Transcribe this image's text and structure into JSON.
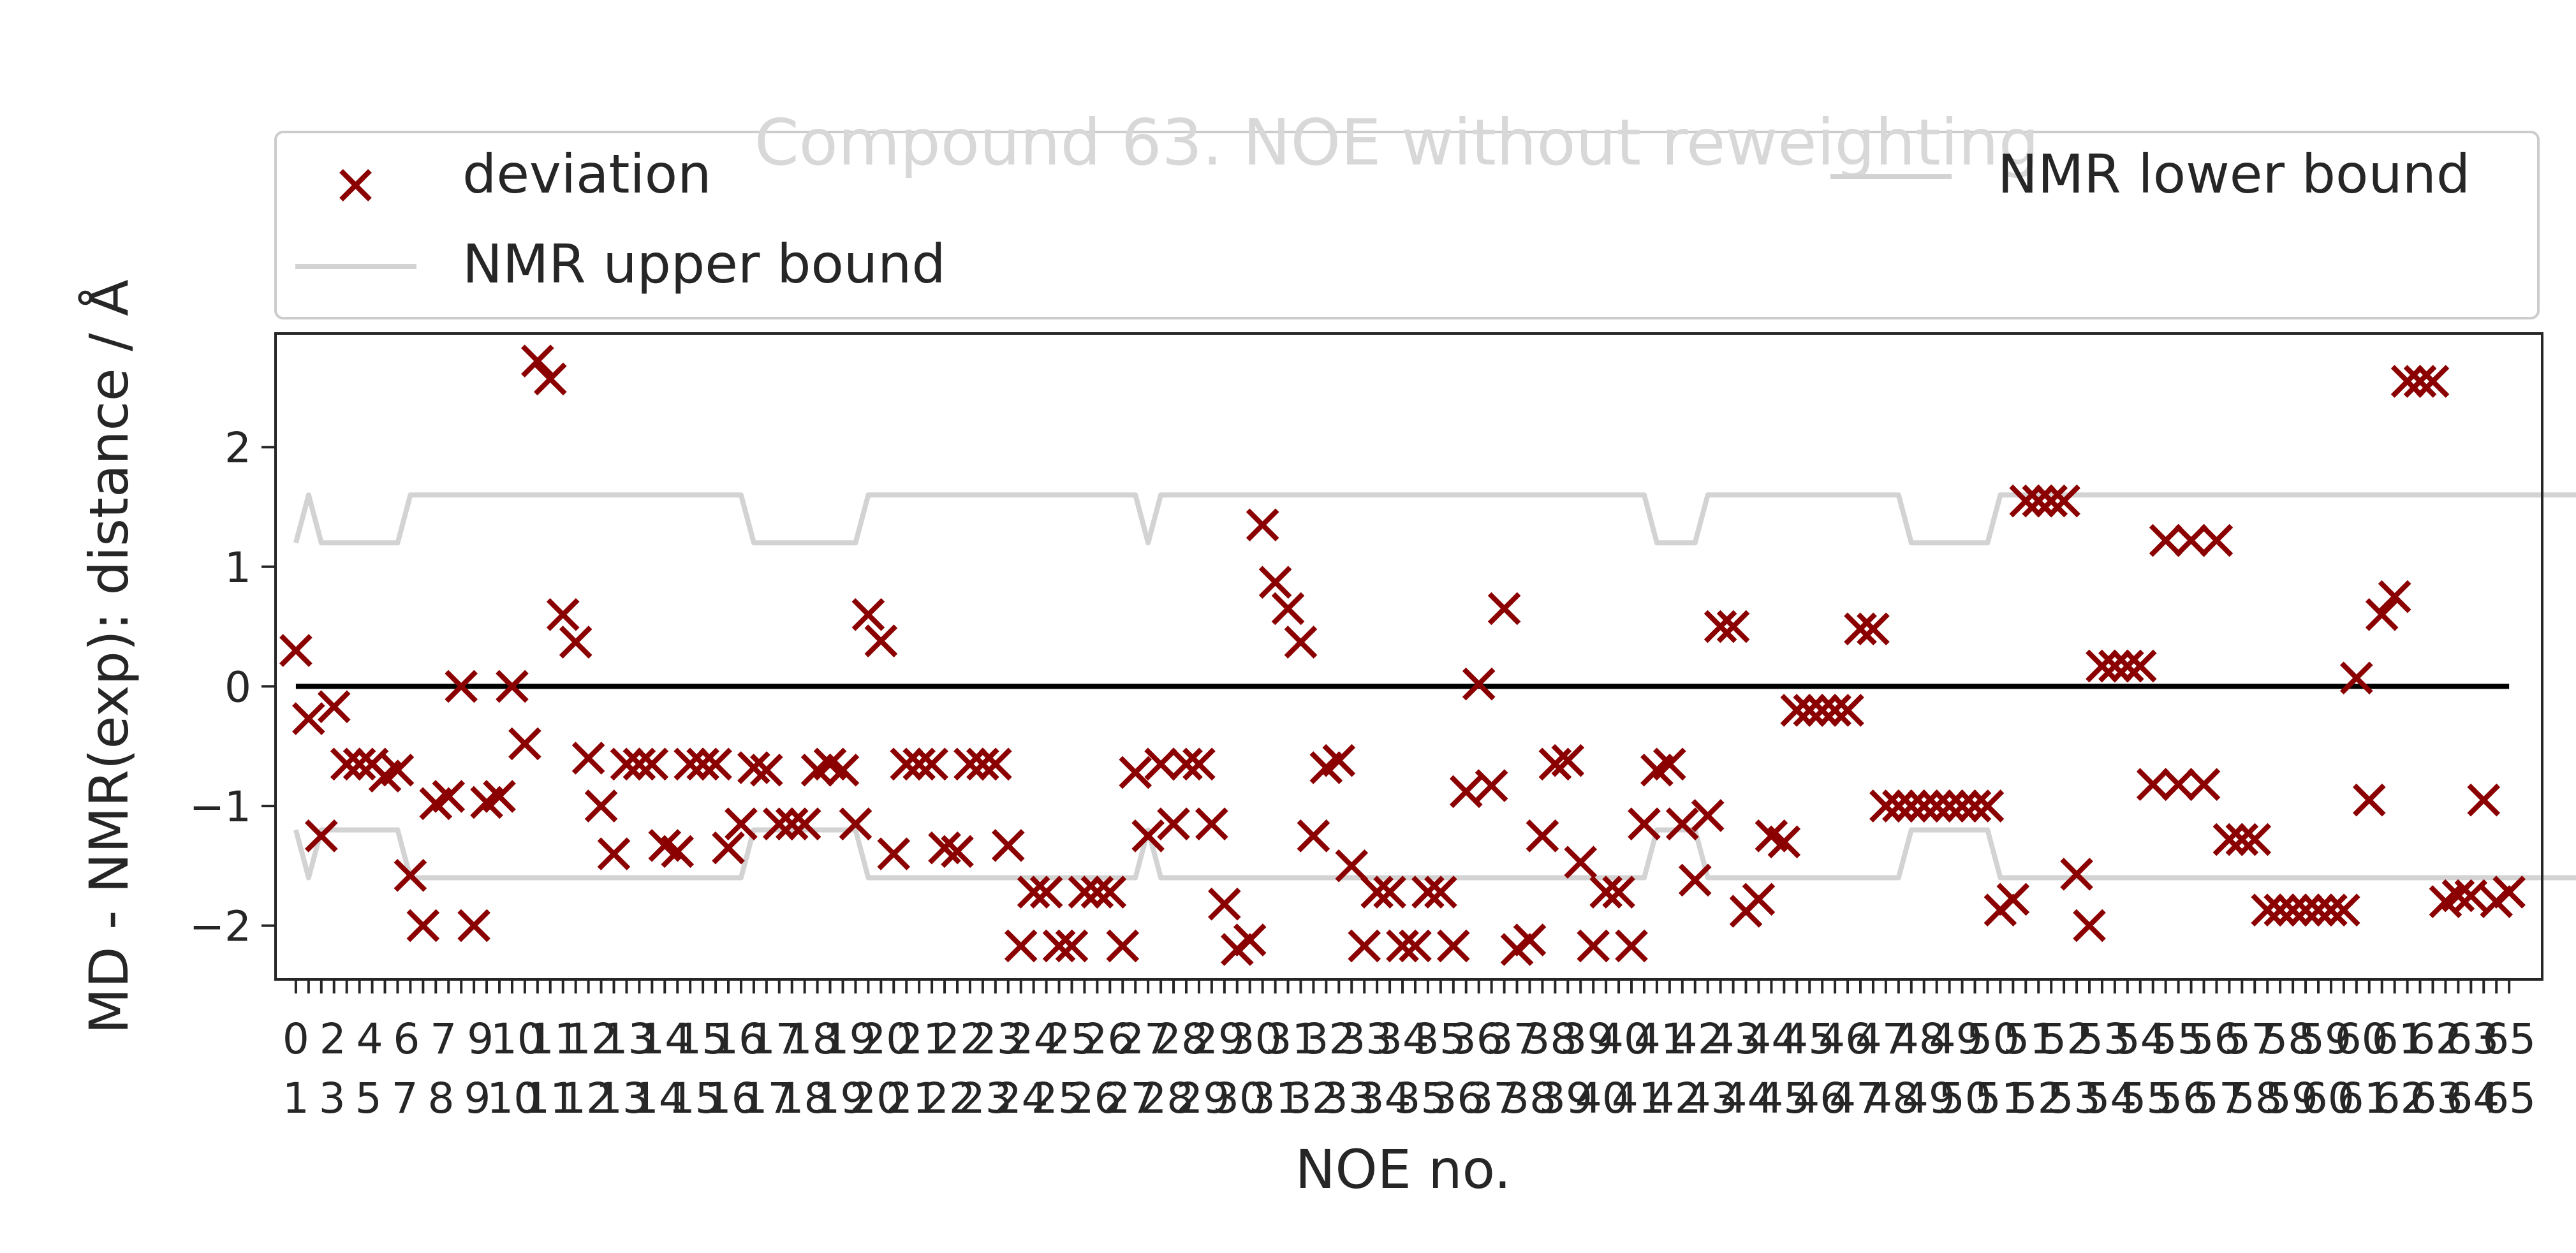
{
  "chart_data": {
    "type": "scatter",
    "title": "Compound 63. NOE without reweighting",
    "xlabel": "NOE no.",
    "ylabel": "MD - NMR(exp): distance / Å",
    "yticks": [
      -2,
      -1,
      0,
      1,
      2
    ],
    "ylim": [
      -2.45,
      2.95
    ],
    "xlim": [
      -1.6,
      176.6
    ],
    "x_tick_labels_row1": [
      "0",
      "2",
      "4",
      "6",
      "7",
      "9",
      "10",
      "11",
      "12",
      "13",
      "14",
      "15",
      "16",
      "17",
      "18",
      "19",
      "20",
      "21",
      "22",
      "23",
      "24",
      "25",
      "26",
      "27",
      "28",
      "29",
      "30",
      "31",
      "32",
      "33",
      "34",
      "35",
      "36",
      "37",
      "38",
      "39",
      "40",
      "41",
      "42",
      "43",
      "44",
      "45",
      "46",
      "47",
      "48",
      "49",
      "50",
      "51",
      "52",
      "53",
      "54",
      "55",
      "56",
      "57",
      "58",
      "59",
      "60",
      "61",
      "62",
      "63",
      "65"
    ],
    "x_tick_labels_row2": [
      "1",
      "3",
      "5",
      "7",
      "8",
      "9",
      "10",
      "11",
      "12",
      "13",
      "14",
      "15",
      "16",
      "17",
      "18",
      "19",
      "20",
      "21",
      "22",
      "23",
      "24",
      "25",
      "26",
      "27",
      "28",
      "29",
      "30",
      "31",
      "32",
      "33",
      "34",
      "35",
      "36",
      "37",
      "38",
      "39",
      "40",
      "41",
      "42",
      "43",
      "44",
      "45",
      "46",
      "47",
      "48",
      "49",
      "50",
      "51",
      "52",
      "53",
      "54",
      "55",
      "56",
      "57",
      "58",
      "59",
      "60",
      "61",
      "62",
      "63",
      "64",
      "65"
    ],
    "legend": {
      "placement": "top",
      "entries": [
        "deviation",
        "NMR upper bound",
        "NMR lower bound"
      ]
    },
    "series": [
      {
        "name": "deviation",
        "color": "#8b0000",
        "marker": "x",
        "values": [
          0.3,
          -0.27,
          -1.25,
          -0.17,
          -0.65,
          -0.65,
          -0.65,
          -0.75,
          -0.7,
          -1.58,
          -2.0,
          -0.98,
          -0.92,
          0.0,
          -2.0,
          -0.97,
          -0.92,
          0.0,
          -0.48,
          2.72,
          2.57,
          0.6,
          0.37,
          -0.6,
          -1.0,
          -1.4,
          -0.65,
          -0.65,
          -0.65,
          -1.33,
          -1.38,
          -0.65,
          -0.65,
          -0.65,
          -1.35,
          -1.15,
          -0.68,
          -0.7,
          -1.15,
          -1.15,
          -1.15,
          -0.7,
          -0.65,
          -0.7,
          -1.15,
          0.6,
          0.38,
          -1.4,
          -0.65,
          -0.65,
          -0.65,
          -1.35,
          -1.38,
          -0.65,
          -0.65,
          -0.65,
          -1.33,
          -2.17,
          -1.72,
          -1.72,
          -2.17,
          -2.17,
          -1.72,
          -1.72,
          -1.72,
          -2.17,
          -0.72,
          -1.25,
          -0.65,
          -1.15,
          -0.65,
          -0.65,
          -1.15,
          -1.82,
          -2.2,
          -2.12,
          1.35,
          0.87,
          0.65,
          0.37,
          -1.25,
          -0.68,
          -0.62,
          -1.5,
          -2.17,
          -1.72,
          -1.72,
          -2.17,
          -2.17,
          -1.72,
          -1.72,
          -2.17,
          -0.88,
          0.02,
          -0.83,
          0.65,
          -2.2,
          -2.12,
          -1.25,
          -0.65,
          -0.62,
          -1.47,
          -2.17,
          -1.72,
          -1.72,
          -2.17,
          -1.15,
          -0.7,
          -0.65,
          -1.15,
          -1.62,
          -1.08,
          0.5,
          0.5,
          -1.88,
          -1.78,
          -1.25,
          -1.3,
          -0.2,
          -0.2,
          -0.2,
          -0.2,
          -0.2,
          0.48,
          0.48,
          -1.0,
          -1.0,
          -1.0,
          -1.0,
          -1.0,
          -1.0,
          -1.0,
          -1.0,
          -1.0,
          -1.87,
          -1.78,
          1.55,
          1.55,
          1.55,
          1.55,
          -1.57,
          -2.0,
          0.17,
          0.17,
          0.17,
          0.17,
          -0.82,
          1.22,
          -0.82,
          1.22,
          -0.82,
          1.22,
          -1.28,
          -1.28,
          -1.28,
          -1.87,
          -1.87,
          -1.87,
          -1.87,
          -1.87,
          -1.87,
          -1.87,
          0.07,
          -0.95,
          0.6,
          0.75,
          2.55,
          2.55,
          2.55,
          -1.8,
          -1.75,
          -1.75,
          -0.95,
          -1.8,
          -1.72
        ]
      },
      {
        "name": "NMR upper bound",
        "color": "#d3d3d3",
        "values": [
          1.2,
          1.6,
          1.2,
          1.2,
          1.2,
          1.2,
          1.2,
          1.2,
          1.2,
          1.6,
          1.6,
          1.6,
          1.6,
          1.6,
          1.6,
          1.6,
          1.6,
          1.6,
          1.6,
          1.6,
          1.6,
          1.6,
          1.6,
          1.6,
          1.6,
          1.6,
          1.6,
          1.6,
          1.6,
          1.6,
          1.6,
          1.6,
          1.6,
          1.6,
          1.6,
          1.6,
          1.2,
          1.2,
          1.2,
          1.2,
          1.2,
          1.2,
          1.2,
          1.2,
          1.2,
          1.6,
          1.6,
          1.6,
          1.6,
          1.6,
          1.6,
          1.6,
          1.6,
          1.6,
          1.6,
          1.6,
          1.6,
          1.6,
          1.6,
          1.6,
          1.6,
          1.6,
          1.6,
          1.6,
          1.6,
          1.6,
          1.6,
          1.2,
          1.6,
          1.6,
          1.6,
          1.6,
          1.6,
          1.6,
          1.6,
          1.6,
          1.6,
          1.6,
          1.6,
          1.6,
          1.6,
          1.6,
          1.6,
          1.6,
          1.6,
          1.6,
          1.6,
          1.6,
          1.6,
          1.6,
          1.6,
          1.6,
          1.6,
          1.6,
          1.6,
          1.6,
          1.6,
          1.6,
          1.6,
          1.6,
          1.6,
          1.6,
          1.6,
          1.6,
          1.6,
          1.6,
          1.6,
          1.2,
          1.2,
          1.2,
          1.2,
          1.6,
          1.6,
          1.6,
          1.6,
          1.6,
          1.6,
          1.6,
          1.6,
          1.6,
          1.6,
          1.6,
          1.6,
          1.6,
          1.6,
          1.6,
          1.6,
          1.2,
          1.2,
          1.2,
          1.2,
          1.2,
          1.2,
          1.2,
          1.6,
          1.6,
          1.6,
          1.6,
          1.6,
          1.6,
          1.6,
          1.6,
          1.6,
          1.6,
          1.6,
          1.6,
          1.6,
          1.6,
          1.6,
          1.6,
          1.6,
          1.6,
          1.6,
          1.6,
          1.6,
          1.6,
          1.6,
          1.6,
          1.6,
          1.6,
          1.6,
          1.6,
          1.6,
          1.6,
          1.6,
          1.6,
          1.6,
          1.6,
          1.6,
          1.6,
          1.6,
          1.6,
          1.6,
          1.6,
          1.6,
          1.6,
          1.6,
          1.6,
          1.6,
          1.6,
          1.6
        ]
      },
      {
        "name": "NMR lower bound",
        "color": "#d3d3d3",
        "values": [
          -1.2,
          -1.6,
          -1.2,
          -1.2,
          -1.2,
          -1.2,
          -1.2,
          -1.2,
          -1.2,
          -1.6,
          -1.6,
          -1.6,
          -1.6,
          -1.6,
          -1.6,
          -1.6,
          -1.6,
          -1.6,
          -1.6,
          -1.6,
          -1.6,
          -1.6,
          -1.6,
          -1.6,
          -1.6,
          -1.6,
          -1.6,
          -1.6,
          -1.6,
          -1.6,
          -1.6,
          -1.6,
          -1.6,
          -1.6,
          -1.6,
          -1.6,
          -1.2,
          -1.2,
          -1.2,
          -1.2,
          -1.2,
          -1.2,
          -1.2,
          -1.2,
          -1.2,
          -1.6,
          -1.6,
          -1.6,
          -1.6,
          -1.6,
          -1.6,
          -1.6,
          -1.6,
          -1.6,
          -1.6,
          -1.6,
          -1.6,
          -1.6,
          -1.6,
          -1.6,
          -1.6,
          -1.6,
          -1.6,
          -1.6,
          -1.6,
          -1.6,
          -1.6,
          -1.2,
          -1.6,
          -1.6,
          -1.6,
          -1.6,
          -1.6,
          -1.6,
          -1.6,
          -1.6,
          -1.6,
          -1.6,
          -1.6,
          -1.6,
          -1.6,
          -1.6,
          -1.6,
          -1.6,
          -1.6,
          -1.6,
          -1.6,
          -1.6,
          -1.6,
          -1.6,
          -1.6,
          -1.6,
          -1.6,
          -1.6,
          -1.6,
          -1.6,
          -1.6,
          -1.6,
          -1.6,
          -1.6,
          -1.6,
          -1.6,
          -1.6,
          -1.6,
          -1.6,
          -1.6,
          -1.6,
          -1.2,
          -1.2,
          -1.2,
          -1.2,
          -1.6,
          -1.6,
          -1.6,
          -1.6,
          -1.6,
          -1.6,
          -1.6,
          -1.6,
          -1.6,
          -1.6,
          -1.6,
          -1.6,
          -1.6,
          -1.6,
          -1.6,
          -1.6,
          -1.2,
          -1.2,
          -1.2,
          -1.2,
          -1.2,
          -1.2,
          -1.2,
          -1.6,
          -1.6,
          -1.6,
          -1.6,
          -1.6,
          -1.6,
          -1.6,
          -1.6,
          -1.6,
          -1.6,
          -1.6,
          -1.6,
          -1.6,
          -1.6,
          -1.6,
          -1.6,
          -1.6,
          -1.6,
          -1.6,
          -1.6,
          -1.6,
          -1.6,
          -1.6,
          -1.6,
          -1.6,
          -1.6,
          -1.6,
          -1.6,
          -1.6,
          -1.6,
          -1.6,
          -1.6,
          -1.6,
          -1.6,
          -1.6,
          -1.6,
          -1.6,
          -1.6,
          -1.6,
          -1.6,
          -1.6,
          -1.6,
          -1.6,
          -1.6,
          -1.6,
          -1.6,
          -1.6
        ]
      },
      {
        "name": "",
        "color": "#000000",
        "values": [
          0,
          0
        ]
      }
    ]
  }
}
